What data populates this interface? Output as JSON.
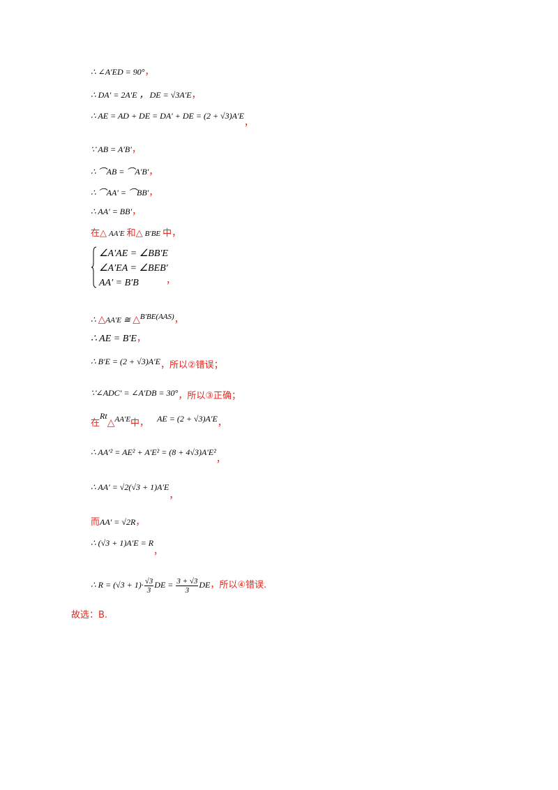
{
  "lines": [
    {
      "text": "∴ ∠A′ED = 90°",
      "punct": "，"
    },
    {
      "text": "∴ DA′ = 2A′E ，  DE = √3A′E",
      "punct": "，"
    },
    {
      "text": "∴ AE = AD + DE = DA′ + DE = (2 + √3)A′E",
      "punct": "，"
    },
    {
      "text": "∵ AB = A′B′",
      "punct": "，"
    },
    {
      "text": "∴ ⌒AB = ⌒A′B′",
      "punct": "，"
    },
    {
      "text": "∴ ⌒AA′ = ⌒BB′",
      "punct": "，"
    },
    {
      "text": "∴ AA′ = BB′",
      "punct": "，"
    },
    {
      "pre": "在△",
      "mid": "AA′E",
      "mid2": "和△",
      "mid3": "B′BE",
      "post": "中，"
    },
    {
      "rows": [
        "∠A′AE = ∠BB′E",
        "∠A′EA = ∠BEB′",
        "AA′ = B′B"
      ],
      "punct": "，"
    },
    {
      "pre": "∴ ",
      "tri": "△",
      "a": "AA′E",
      "cong": " ≅ ",
      "tri2": "△",
      "b": "B′BE(AAS)",
      "punct": "，"
    },
    {
      "text": "∴ AE = B′E",
      "punct": "，"
    },
    {
      "text": "∴ B′E = (2 + √3)A′E",
      "note": "，所以②错误；"
    },
    {
      "text": "∵∠ADC′ = ∠A′DB = 30°",
      "note": "，所以③正确；"
    },
    {
      "pre": "在",
      "rt": "Rt",
      "tri": "△",
      "a": "AA′E",
      "mid": "中，",
      "b": "AE = (2 + √3)A′E",
      "punct": "，"
    },
    {
      "text": "∴ AA′² = AE² + A′E² = (8 + 4√3)A′E²",
      "punct": "，"
    },
    {
      "text": "∴ AA′ = √2(√3 + 1)A′E",
      "punct": "，"
    },
    {
      "pre": "而",
      "text": "AA′ = √2R",
      "punct": "，"
    },
    {
      "text": "∴ (√3 + 1)A′E = R",
      "punct": "，"
    },
    {
      "pre": "∴ R = (√3 + 1)·",
      "f1num": "√3",
      "f1den": "3",
      "mid": "DE = ",
      "f2num": "3 + √3",
      "f2den": "3",
      "post": "DE",
      "note": "，所以④错误."
    },
    {
      "text": "故选：B."
    }
  ]
}
